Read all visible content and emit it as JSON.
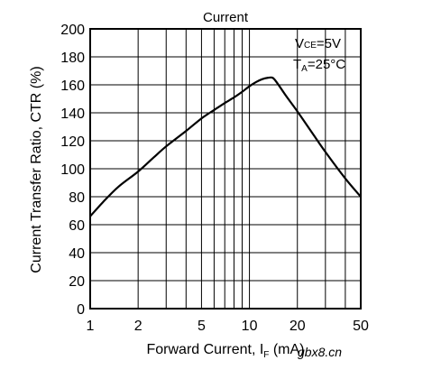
{
  "chart_data": {
    "type": "line",
    "title": "Current",
    "xlabel": "Forward Current, I",
    "xlabel_sub": "F",
    "xlabel_unit": " (mA)",
    "ylabel": "Current Transfer Ratio, CTR (%)",
    "x_scale": "log",
    "xlim": [
      1,
      50
    ],
    "ylim": [
      0,
      200
    ],
    "x_ticks": [
      1,
      2,
      5,
      10,
      20,
      50
    ],
    "x_tick_labels": [
      "1",
      "2",
      "5",
      "10",
      "20",
      "50"
    ],
    "y_ticks": [
      0,
      20,
      40,
      60,
      80,
      100,
      120,
      140,
      160,
      180,
      200
    ],
    "y_tick_labels": [
      "0",
      "20",
      "40",
      "60",
      "80",
      "100",
      "120",
      "140",
      "160",
      "180",
      "200"
    ],
    "grid": true,
    "legend_position": "top-right",
    "annotations": [
      {
        "main": "V",
        "sub": "CE",
        "rest": "=5V"
      },
      {
        "main": "T",
        "sub": "A",
        "rest": "=25°C"
      }
    ],
    "series": [
      {
        "x": [
          1,
          1.2,
          1.5,
          2,
          2.5,
          3,
          4,
          5,
          6,
          7,
          8,
          9,
          10,
          11,
          12,
          13,
          14,
          15,
          17,
          20,
          25,
          30,
          40,
          50
        ],
        "y": [
          66,
          76,
          87,
          98,
          108,
          116,
          127,
          136,
          142,
          147,
          151,
          155,
          159,
          162,
          164,
          165,
          165,
          161,
          152,
          141,
          125,
          112,
          93,
          80
        ]
      }
    ],
    "line_color": "#000000"
  },
  "watermark": "gbx8.cn"
}
